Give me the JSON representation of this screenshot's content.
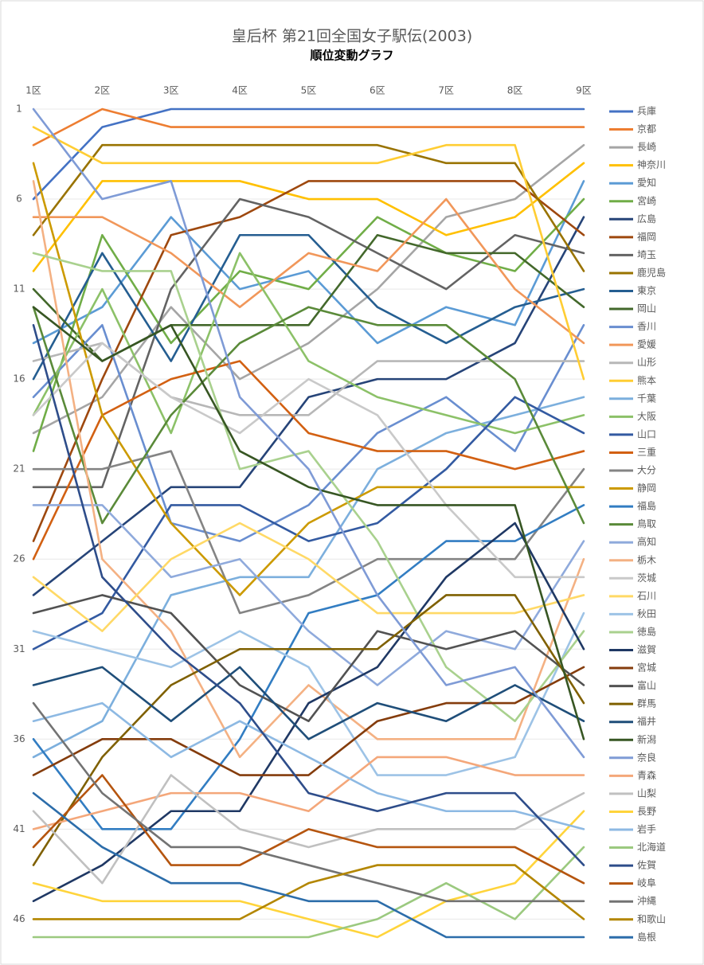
{
  "chart_data": {
    "type": "line",
    "title": "皇后杯 第21回全国女子駅伝(2003)",
    "subtitle": "順位変動グラフ",
    "categories": [
      "1区",
      "2区",
      "3区",
      "4区",
      "5区",
      "6区",
      "7区",
      "8区",
      "9区"
    ],
    "ylim": [
      47,
      1
    ],
    "yticks": [
      1,
      6,
      11,
      16,
      21,
      26,
      31,
      36,
      41,
      46
    ],
    "grid": true,
    "legend": "right",
    "series": [
      {
        "name": "兵庫",
        "color": "#4472C4",
        "values": [
          6,
          2,
          1,
          1,
          1,
          1,
          1,
          1,
          1
        ]
      },
      {
        "name": "京都",
        "color": "#ED7D31",
        "values": [
          3,
          1,
          2,
          2,
          2,
          2,
          2,
          2,
          2
        ]
      },
      {
        "name": "長崎",
        "color": "#A5A5A5",
        "values": [
          19,
          17,
          12,
          16,
          14,
          11,
          7,
          6,
          3
        ]
      },
      {
        "name": "神奈川",
        "color": "#FFC000",
        "values": [
          10,
          5,
          5,
          5,
          6,
          6,
          8,
          7,
          4
        ]
      },
      {
        "name": "愛知",
        "color": "#5B9BD5",
        "values": [
          14,
          12,
          7,
          11,
          10,
          14,
          12,
          13,
          5
        ]
      },
      {
        "name": "宮崎",
        "color": "#70AD47",
        "values": [
          20,
          8,
          14,
          10,
          11,
          7,
          9,
          10,
          6
        ]
      },
      {
        "name": "広島",
        "color": "#264478",
        "values": [
          28,
          25,
          22,
          22,
          17,
          16,
          16,
          14,
          7
        ]
      },
      {
        "name": "福岡",
        "color": "#9E480E",
        "values": [
          25,
          16,
          8,
          7,
          5,
          5,
          5,
          5,
          8
        ]
      },
      {
        "name": "埼玉",
        "color": "#636363",
        "values": [
          22,
          22,
          11,
          6,
          7,
          9,
          11,
          8,
          9
        ]
      },
      {
        "name": "鹿児島",
        "color": "#997300",
        "values": [
          8,
          3,
          3,
          3,
          3,
          3,
          4,
          4,
          10
        ]
      },
      {
        "name": "東京",
        "color": "#255E91",
        "values": [
          16,
          9,
          15,
          8,
          8,
          12,
          14,
          12,
          11
        ]
      },
      {
        "name": "岡山",
        "color": "#43682B",
        "values": [
          11,
          15,
          13,
          13,
          13,
          8,
          9,
          9,
          12
        ]
      },
      {
        "name": "香川",
        "color": "#698ED0",
        "values": [
          17,
          13,
          24,
          25,
          23,
          19,
          17,
          20,
          13
        ]
      },
      {
        "name": "愛媛",
        "color": "#F1975A",
        "values": [
          7,
          7,
          9,
          12,
          9,
          10,
          6,
          11,
          14
        ]
      },
      {
        "name": "山形",
        "color": "#B7B7B7",
        "values": [
          15,
          14,
          17,
          18,
          18,
          15,
          15,
          15,
          15
        ]
      },
      {
        "name": "熊本",
        "color": "#FFCD33",
        "values": [
          2,
          4,
          4,
          4,
          4,
          4,
          3,
          3,
          16
        ]
      },
      {
        "name": "千葉",
        "color": "#7CAFDD",
        "values": [
          37,
          35,
          28,
          27,
          27,
          21,
          19,
          18,
          17
        ]
      },
      {
        "name": "大阪",
        "color": "#8CC168",
        "values": [
          18,
          11,
          19,
          9,
          15,
          17,
          18,
          19,
          18
        ]
      },
      {
        "name": "山口",
        "color": "#335AA1",
        "values": [
          31,
          29,
          23,
          23,
          25,
          24,
          21,
          17,
          19
        ]
      },
      {
        "name": "三重",
        "color": "#D26012",
        "values": [
          26,
          18,
          16,
          15,
          19,
          20,
          20,
          21,
          20
        ]
      },
      {
        "name": "大分",
        "color": "#848484",
        "values": [
          21,
          21,
          20,
          29,
          28,
          26,
          26,
          26,
          21
        ]
      },
      {
        "name": "静岡",
        "color": "#CC9A00",
        "values": [
          4,
          18,
          24,
          28,
          24,
          22,
          22,
          22,
          22
        ]
      },
      {
        "name": "福島",
        "color": "#327DC2",
        "values": [
          36,
          41,
          41,
          36,
          29,
          28,
          25,
          25,
          23
        ]
      },
      {
        "name": "鳥取",
        "color": "#5A8A39",
        "values": [
          12,
          24,
          18,
          14,
          12,
          13,
          13,
          16,
          24
        ]
      },
      {
        "name": "高知",
        "color": "#8FAADC",
        "values": [
          23,
          23,
          27,
          26,
          30,
          33,
          30,
          31,
          25
        ]
      },
      {
        "name": "栃木",
        "color": "#F4B183",
        "values": [
          5,
          26,
          30,
          37,
          33,
          36,
          36,
          36,
          26
        ]
      },
      {
        "name": "茨城",
        "color": "#C9C9C9",
        "values": [
          18,
          14,
          17,
          19,
          16,
          18,
          23,
          27,
          27
        ]
      },
      {
        "name": "石川",
        "color": "#FFD966",
        "values": [
          27,
          30,
          26,
          24,
          26,
          29,
          29,
          29,
          28
        ]
      },
      {
        "name": "秋田",
        "color": "#9DC3E6",
        "values": [
          30,
          31,
          32,
          30,
          32,
          38,
          38,
          37,
          29
        ]
      },
      {
        "name": "徳島",
        "color": "#A9D18E",
        "values": [
          9,
          10,
          10,
          21,
          20,
          25,
          32,
          35,
          30
        ]
      },
      {
        "name": "滋賀",
        "color": "#1F3864",
        "values": [
          45,
          43,
          40,
          40,
          34,
          32,
          27,
          24,
          31
        ]
      },
      {
        "name": "宮城",
        "color": "#843C0C",
        "values": [
          38,
          36,
          36,
          38,
          38,
          35,
          34,
          34,
          32
        ]
      },
      {
        "name": "富山",
        "color": "#525252",
        "values": [
          29,
          28,
          29,
          33,
          35,
          30,
          31,
          30,
          33
        ]
      },
      {
        "name": "群馬",
        "color": "#7F6000",
        "values": [
          43,
          37,
          33,
          31,
          31,
          31,
          28,
          28,
          34
        ]
      },
      {
        "name": "福井",
        "color": "#1F4E79",
        "values": [
          33,
          32,
          35,
          32,
          36,
          34,
          35,
          33,
          35
        ]
      },
      {
        "name": "新潟",
        "color": "#375623",
        "values": [
          12,
          15,
          13,
          20,
          22,
          23,
          23,
          23,
          36
        ]
      },
      {
        "name": "奈良",
        "color": "#7F9BD6",
        "values": [
          1,
          6,
          5,
          17,
          21,
          28,
          33,
          32,
          37
        ]
      },
      {
        "name": "青森",
        "color": "#F4A77A",
        "values": [
          41,
          40,
          39,
          39,
          40,
          37,
          37,
          38,
          38
        ]
      },
      {
        "name": "山梨",
        "color": "#C0C0C0",
        "values": [
          40,
          44,
          38,
          41,
          42,
          41,
          41,
          41,
          39
        ]
      },
      {
        "name": "長野",
        "color": "#FFD43B",
        "values": [
          44,
          45,
          45,
          45,
          46,
          47,
          45,
          44,
          40
        ]
      },
      {
        "name": "岩手",
        "color": "#8DB9E3",
        "values": [
          35,
          34,
          37,
          35,
          37,
          39,
          40,
          40,
          41
        ]
      },
      {
        "name": "北海道",
        "color": "#9BC97F",
        "values": [
          47,
          47,
          47,
          47,
          47,
          46,
          44,
          46,
          42
        ]
      },
      {
        "name": "佐賀",
        "color": "#2E4D8A",
        "values": [
          13,
          27,
          31,
          34,
          39,
          40,
          39,
          39,
          43
        ]
      },
      {
        "name": "岐阜",
        "color": "#B5550F",
        "values": [
          42,
          38,
          43,
          43,
          41,
          42,
          42,
          42,
          44
        ]
      },
      {
        "name": "沖縄",
        "color": "#737373",
        "values": [
          34,
          39,
          42,
          42,
          43,
          44,
          45,
          45,
          45
        ]
      },
      {
        "name": "和歌山",
        "color": "#B38600",
        "values": [
          46,
          46,
          46,
          46,
          44,
          43,
          43,
          43,
          46
        ]
      },
      {
        "name": "島根",
        "color": "#2C6DAA",
        "values": [
          39,
          42,
          44,
          44,
          45,
          45,
          47,
          47,
          47
        ]
      }
    ]
  }
}
